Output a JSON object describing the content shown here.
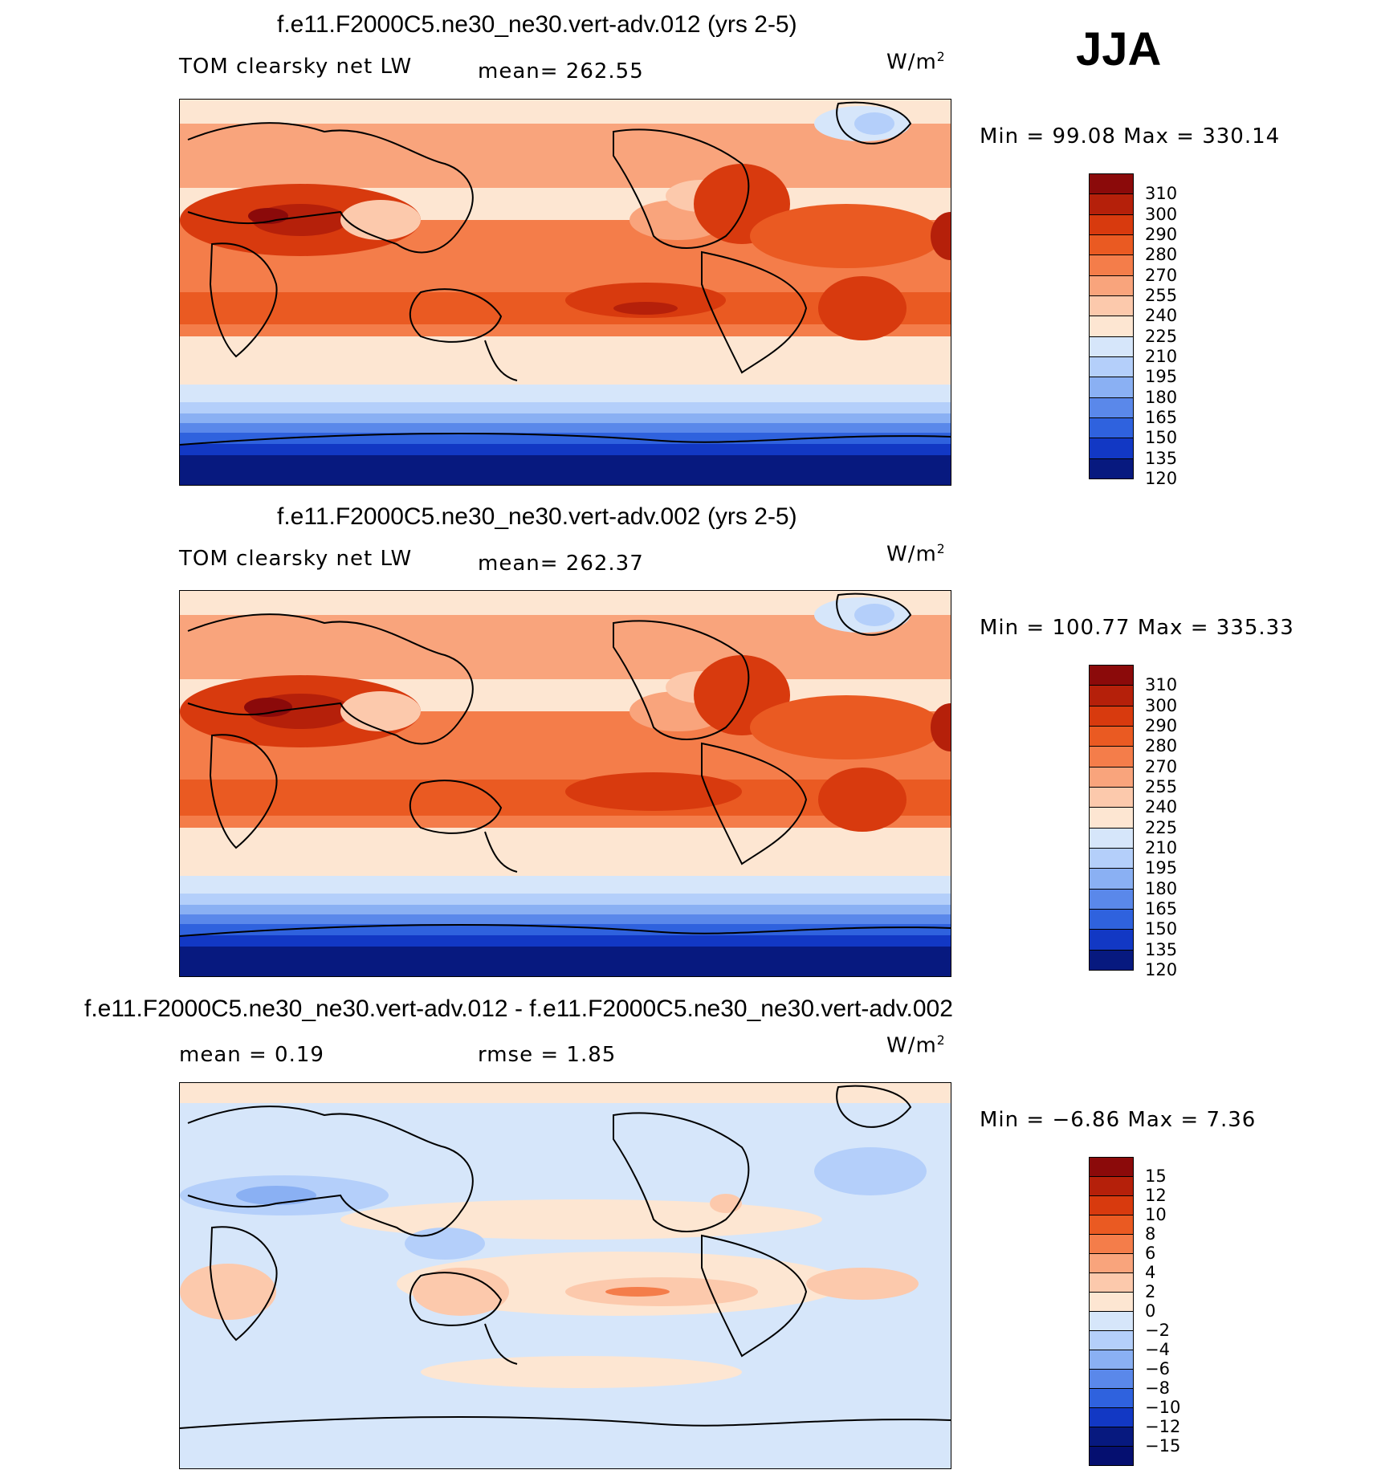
{
  "season": "JJA",
  "panels": [
    {
      "title": "f.e11.F2000C5.ne30_ne30.vert-adv.012 (yrs 2-5)",
      "variable": "TOM clearsky net LW",
      "stat1": "mean= 262.55",
      "stat2": "",
      "units": "W/m",
      "units_sup": "2",
      "minmax": "Min =   99.08 Max = 330.14",
      "colorbar": {
        "levels": [
          "310",
          "300",
          "290",
          "280",
          "270",
          "255",
          "240",
          "225",
          "210",
          "195",
          "180",
          "165",
          "150",
          "135",
          "120"
        ],
        "colors": [
          "#8b0a0a",
          "#b5200a",
          "#d83a0e",
          "#ea5a22",
          "#f47d4a",
          "#f9a47c",
          "#fcc9ac",
          "#fde6d2",
          "#d6e6fa",
          "#b4cffa",
          "#8ab0f3",
          "#5a88ea",
          "#2f62de",
          "#1238c4",
          "#07197f"
        ]
      }
    },
    {
      "title": "f.e11.F2000C5.ne30_ne30.vert-adv.002 (yrs 2-5)",
      "variable": "TOM clearsky net LW",
      "stat1": "mean= 262.37",
      "stat2": "",
      "units": "W/m",
      "units_sup": "2",
      "minmax": "Min = 100.77 Max = 335.33",
      "colorbar": {
        "levels": [
          "310",
          "300",
          "290",
          "280",
          "270",
          "255",
          "240",
          "225",
          "210",
          "195",
          "180",
          "165",
          "150",
          "135",
          "120"
        ],
        "colors": [
          "#8b0a0a",
          "#b5200a",
          "#d83a0e",
          "#ea5a22",
          "#f47d4a",
          "#f9a47c",
          "#fcc9ac",
          "#fde6d2",
          "#d6e6fa",
          "#b4cffa",
          "#8ab0f3",
          "#5a88ea",
          "#2f62de",
          "#1238c4",
          "#07197f"
        ]
      }
    },
    {
      "title": "f.e11.F2000C5.ne30_ne30.vert-adv.012 - f.e11.F2000C5.ne30_ne30.vert-adv.002",
      "variable": "",
      "stat1": "mean =    0.19",
      "stat2": "rmse =    1.85",
      "units": "W/m",
      "units_sup": "2",
      "minmax": "Min =  −6.86 Max =    7.36",
      "colorbar": {
        "levels": [
          "15",
          "12",
          "10",
          "8",
          "6",
          "4",
          "2",
          "0",
          "−2",
          "−4",
          "−6",
          "−8",
          "−10",
          "−12",
          "−15"
        ],
        "colors": [
          "#8b0a0a",
          "#b5200a",
          "#d83a0e",
          "#ea5a22",
          "#f47d4a",
          "#f9a47c",
          "#fcc9ac",
          "#fde6d2",
          "#d6e6fa",
          "#b4cffa",
          "#8ab0f3",
          "#5a88ea",
          "#2f62de",
          "#1238c4",
          "#07197f",
          "#050f70"
        ]
      }
    }
  ]
}
